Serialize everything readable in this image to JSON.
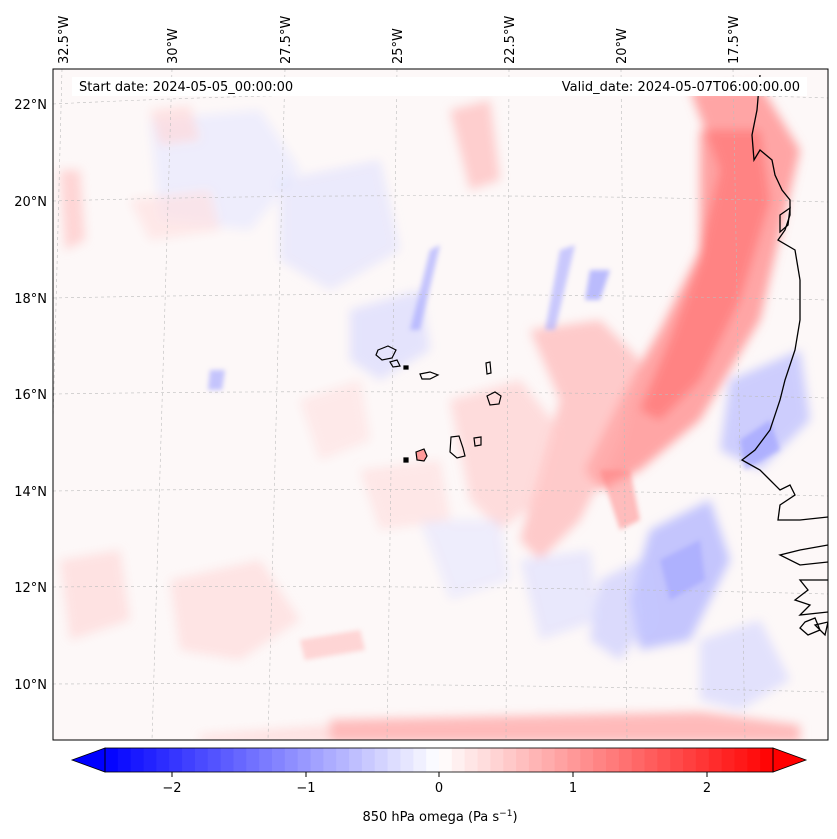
{
  "header": {
    "start_date": "Start date: 2024-05-05_00:00:00",
    "valid_date": "Valid_date: 2024-05-07T06:00:00.00"
  },
  "axes": {
    "lon_ticks": [
      "32.5°W",
      "30°W",
      "27.5°W",
      "25°W",
      "22.5°W",
      "20°W",
      "17.5°W"
    ],
    "lat_ticks": [
      "22°N",
      "20°N",
      "18°N",
      "16°N",
      "14°N",
      "12°N",
      "10°N"
    ],
    "grid": true
  },
  "colorbar": {
    "label_main": "850 hPa omega (Pa s",
    "label_sup": "−1",
    "label_end": ")",
    "ticks": [
      "−2",
      "−1",
      "0",
      "1",
      "2"
    ],
    "range": [
      -2.6,
      2.6
    ],
    "cmap": "bwr",
    "extend": "both"
  },
  "colors": {
    "negative": "#0000ff",
    "positive": "#ff0000",
    "coastline": "#000000"
  },
  "map": {
    "projection": "Lambert conformal",
    "features": [
      "Cape Verde islands",
      "West African coastline"
    ]
  }
}
